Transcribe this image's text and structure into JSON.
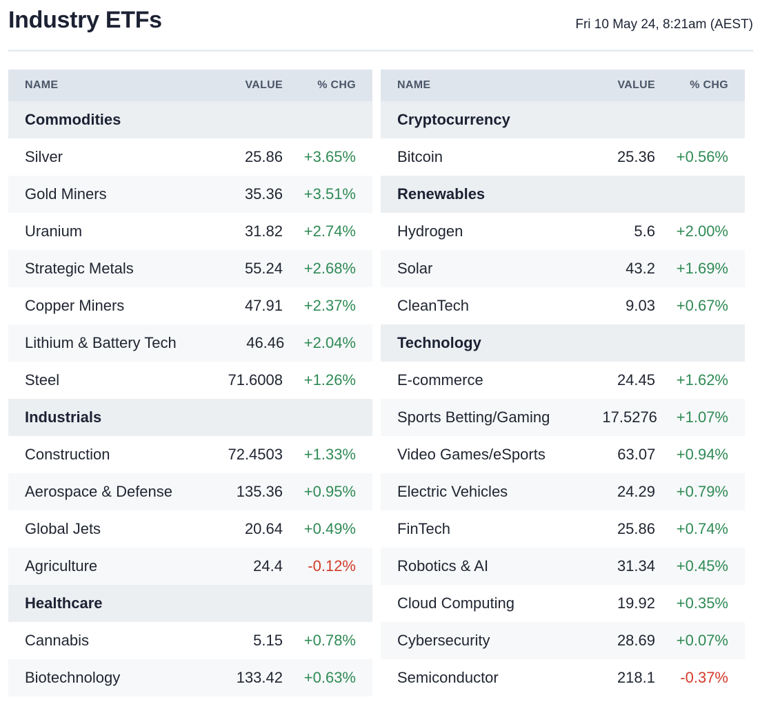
{
  "header": {
    "title": "Industry ETFs",
    "timestamp": "Fri 10 May 24, 8:21am (AEST)"
  },
  "colors": {
    "positive": "#2f8a55",
    "negative": "#d23b29",
    "header_bg": "#dfe5ec",
    "group_bg": "#eceff2"
  },
  "columns": {
    "name": "NAME",
    "value": "VALUE",
    "change": "% CHG"
  },
  "left_table": {
    "rows": [
      {
        "type": "group",
        "name": "Commodities"
      },
      {
        "type": "item",
        "name": "Silver",
        "value": "25.86",
        "change": "+3.65%",
        "direction": "up"
      },
      {
        "type": "item",
        "name": "Gold Miners",
        "value": "35.36",
        "change": "+3.51%",
        "direction": "up"
      },
      {
        "type": "item",
        "name": "Uranium",
        "value": "31.82",
        "change": "+2.74%",
        "direction": "up"
      },
      {
        "type": "item",
        "name": "Strategic Metals",
        "value": "55.24",
        "change": "+2.68%",
        "direction": "up"
      },
      {
        "type": "item",
        "name": "Copper Miners",
        "value": "47.91",
        "change": "+2.37%",
        "direction": "up"
      },
      {
        "type": "item",
        "name": "Lithium & Battery Tech",
        "value": "46.46",
        "change": "+2.04%",
        "direction": "up"
      },
      {
        "type": "item",
        "name": "Steel",
        "value": "71.6008",
        "change": "+1.26%",
        "direction": "up"
      },
      {
        "type": "group",
        "name": "Industrials"
      },
      {
        "type": "item",
        "name": "Construction",
        "value": "72.4503",
        "change": "+1.33%",
        "direction": "up"
      },
      {
        "type": "item",
        "name": "Aerospace & Defense",
        "value": "135.36",
        "change": "+0.95%",
        "direction": "up"
      },
      {
        "type": "item",
        "name": "Global Jets",
        "value": "20.64",
        "change": "+0.49%",
        "direction": "up"
      },
      {
        "type": "item",
        "name": "Agriculture",
        "value": "24.4",
        "change": "-0.12%",
        "direction": "down"
      },
      {
        "type": "group",
        "name": "Healthcare"
      },
      {
        "type": "item",
        "name": "Cannabis",
        "value": "5.15",
        "change": "+0.78%",
        "direction": "up"
      },
      {
        "type": "item",
        "name": "Biotechnology",
        "value": "133.42",
        "change": "+0.63%",
        "direction": "up"
      }
    ]
  },
  "right_table": {
    "rows": [
      {
        "type": "group",
        "name": "Cryptocurrency"
      },
      {
        "type": "item",
        "name": "Bitcoin",
        "value": "25.36",
        "change": "+0.56%",
        "direction": "up"
      },
      {
        "type": "group",
        "name": "Renewables"
      },
      {
        "type": "item",
        "name": "Hydrogen",
        "value": "5.6",
        "change": "+2.00%",
        "direction": "up"
      },
      {
        "type": "item",
        "name": "Solar",
        "value": "43.2",
        "change": "+1.69%",
        "direction": "up"
      },
      {
        "type": "item",
        "name": "CleanTech",
        "value": "9.03",
        "change": "+0.67%",
        "direction": "up"
      },
      {
        "type": "group",
        "name": "Technology"
      },
      {
        "type": "item",
        "name": "E-commerce",
        "value": "24.45",
        "change": "+1.62%",
        "direction": "up"
      },
      {
        "type": "item",
        "name": "Sports Betting/Gaming",
        "value": "17.5276",
        "change": "+1.07%",
        "direction": "up"
      },
      {
        "type": "item",
        "name": "Video Games/eSports",
        "value": "63.07",
        "change": "+0.94%",
        "direction": "up"
      },
      {
        "type": "item",
        "name": "Electric Vehicles",
        "value": "24.29",
        "change": "+0.79%",
        "direction": "up"
      },
      {
        "type": "item",
        "name": "FinTech",
        "value": "25.86",
        "change": "+0.74%",
        "direction": "up"
      },
      {
        "type": "item",
        "name": "Robotics & AI",
        "value": "31.34",
        "change": "+0.45%",
        "direction": "up"
      },
      {
        "type": "item",
        "name": "Cloud Computing",
        "value": "19.92",
        "change": "+0.35%",
        "direction": "up"
      },
      {
        "type": "item",
        "name": "Cybersecurity",
        "value": "28.69",
        "change": "+0.07%",
        "direction": "up"
      },
      {
        "type": "item",
        "name": "Semiconductor",
        "value": "218.1",
        "change": "-0.37%",
        "direction": "down"
      }
    ]
  }
}
